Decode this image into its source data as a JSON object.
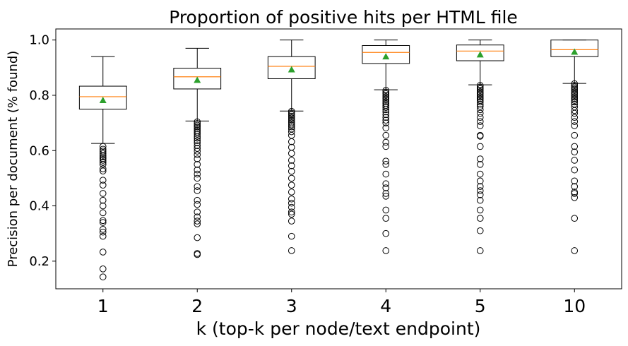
{
  "chart_data": {
    "type": "boxplot",
    "title": "Proportion of positive hits per HTML file",
    "xlabel": "k (top-k per node/text endpoint)",
    "ylabel": "Precision per document (% found)",
    "ylim": [
      0.1,
      1.04
    ],
    "yticks": [
      "0.2",
      "0.4",
      "0.6",
      "0.8",
      "1.0"
    ],
    "grid": false,
    "categories": [
      "1",
      "2",
      "3",
      "4",
      "5",
      "10"
    ],
    "boxes": [
      {
        "label": "1",
        "whisker_low": 0.626,
        "q1": 0.75,
        "median": 0.795,
        "q3": 0.833,
        "whisker_high": 0.94,
        "mean": 0.782,
        "fliers": [
          0.615,
          0.605,
          0.598,
          0.59,
          0.583,
          0.577,
          0.571,
          0.565,
          0.558,
          0.55,
          0.534,
          0.526,
          0.493,
          0.475,
          0.445,
          0.42,
          0.4,
          0.375,
          0.347,
          0.34,
          0.315,
          0.305,
          0.29,
          0.233,
          0.172,
          0.143
        ]
      },
      {
        "label": "2",
        "whisker_low": 0.707,
        "q1": 0.823,
        "median": 0.867,
        "q3": 0.898,
        "whisker_high": 0.97,
        "mean": 0.855,
        "fliers": [
          0.704,
          0.698,
          0.692,
          0.686,
          0.68,
          0.673,
          0.667,
          0.66,
          0.652,
          0.645,
          0.636,
          0.628,
          0.618,
          0.608,
          0.598,
          0.585,
          0.57,
          0.55,
          0.53,
          0.515,
          0.5,
          0.47,
          0.455,
          0.42,
          0.405,
          0.378,
          0.36,
          0.345,
          0.335,
          0.285,
          0.228,
          0.224
        ]
      },
      {
        "label": "3",
        "whisker_low": 0.743,
        "q1": 0.86,
        "median": 0.905,
        "q3": 0.94,
        "whisker_high": 1.0,
        "mean": 0.893,
        "fliers": [
          0.742,
          0.736,
          0.73,
          0.724,
          0.718,
          0.712,
          0.706,
          0.7,
          0.693,
          0.686,
          0.678,
          0.668,
          0.655,
          0.632,
          0.612,
          0.59,
          0.565,
          0.545,
          0.525,
          0.5,
          0.475,
          0.45,
          0.425,
          0.41,
          0.395,
          0.378,
          0.37,
          0.345,
          0.29,
          0.238
        ]
      },
      {
        "label": "4",
        "whisker_low": 0.82,
        "q1": 0.915,
        "median": 0.955,
        "q3": 0.98,
        "whisker_high": 1.0,
        "mean": 0.94,
        "fliers": [
          0.818,
          0.812,
          0.806,
          0.8,
          0.794,
          0.788,
          0.782,
          0.776,
          0.77,
          0.763,
          0.756,
          0.748,
          0.74,
          0.73,
          0.72,
          0.71,
          0.7,
          0.682,
          0.655,
          0.63,
          0.615,
          0.562,
          0.55,
          0.515,
          0.48,
          0.465,
          0.445,
          0.435,
          0.385,
          0.355,
          0.3,
          0.238
        ]
      },
      {
        "label": "5",
        "whisker_low": 0.838,
        "q1": 0.925,
        "median": 0.96,
        "q3": 0.982,
        "whisker_high": 1.0,
        "mean": 0.947,
        "fliers": [
          0.836,
          0.83,
          0.824,
          0.818,
          0.812,
          0.806,
          0.8,
          0.794,
          0.788,
          0.782,
          0.776,
          0.768,
          0.76,
          0.748,
          0.735,
          0.72,
          0.705,
          0.69,
          0.655,
          0.652,
          0.615,
          0.57,
          0.55,
          0.515,
          0.49,
          0.47,
          0.455,
          0.44,
          0.42,
          0.385,
          0.355,
          0.31,
          0.238
        ]
      },
      {
        "label": "10",
        "whisker_low": 0.843,
        "q1": 0.94,
        "median": 0.965,
        "q3": 1.0,
        "whisker_high": 1.0,
        "mean": 0.957,
        "fliers": [
          0.842,
          0.836,
          0.83,
          0.824,
          0.818,
          0.812,
          0.806,
          0.8,
          0.794,
          0.788,
          0.782,
          0.776,
          0.768,
          0.758,
          0.745,
          0.735,
          0.72,
          0.705,
          0.69,
          0.655,
          0.615,
          0.595,
          0.565,
          0.53,
          0.49,
          0.47,
          0.45,
          0.445,
          0.43,
          0.355,
          0.238
        ]
      }
    ],
    "colors": {
      "box": "#000000",
      "median": "#ff7f0e",
      "mean": "#2ca02c",
      "flier": "#000000",
      "background": "#ffffff"
    }
  }
}
